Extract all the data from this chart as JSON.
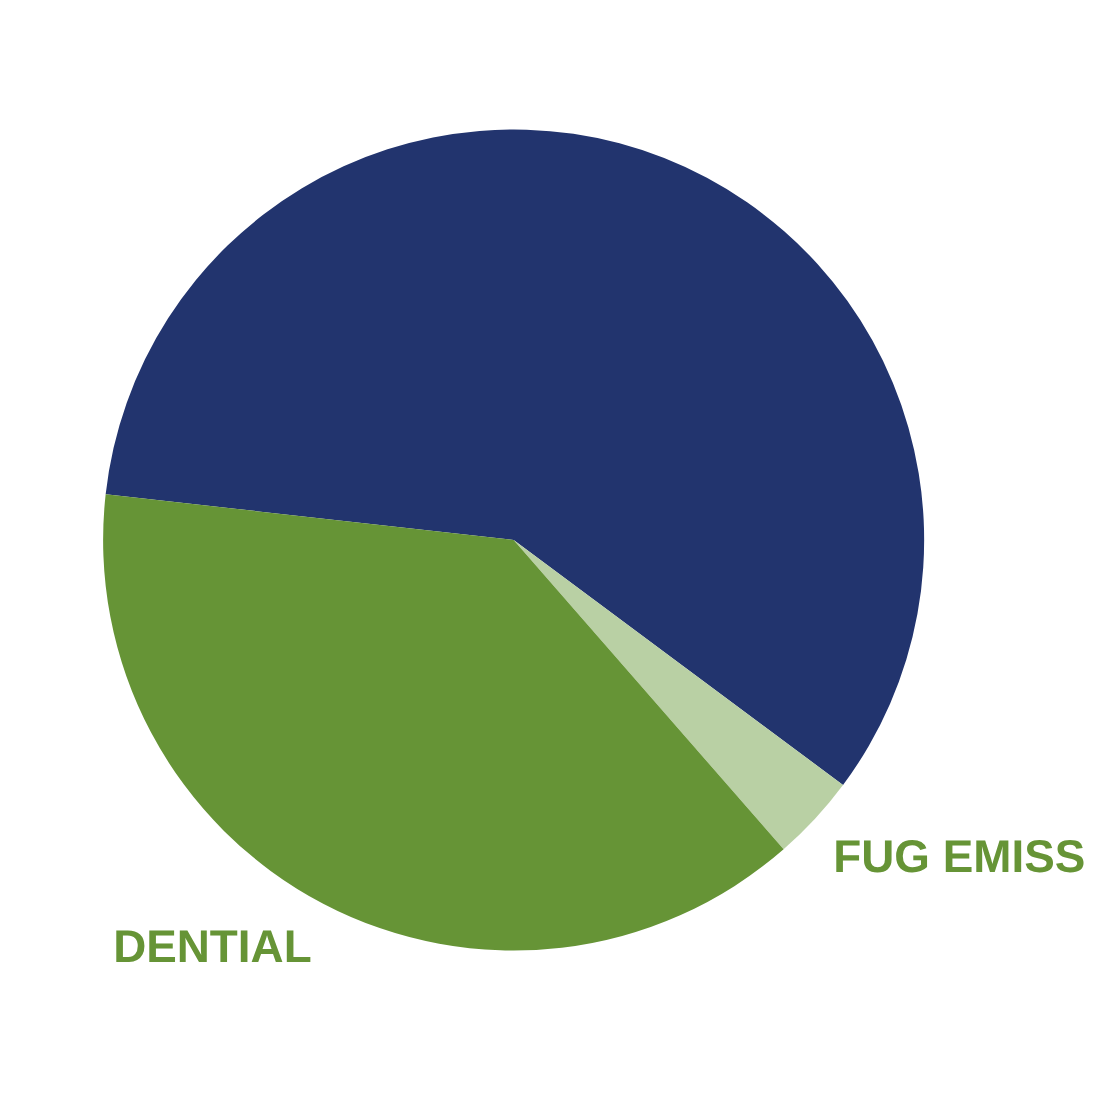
{
  "chart_data": {
    "type": "pie",
    "categories": [
      null,
      "FUG EMISS",
      "DENTIAL"
    ],
    "values": [
      58.4,
      3.4,
      38.2
    ],
    "colors": [
      "#22346e",
      "#b9d0a4",
      "#669436"
    ],
    "legend": false
  }
}
